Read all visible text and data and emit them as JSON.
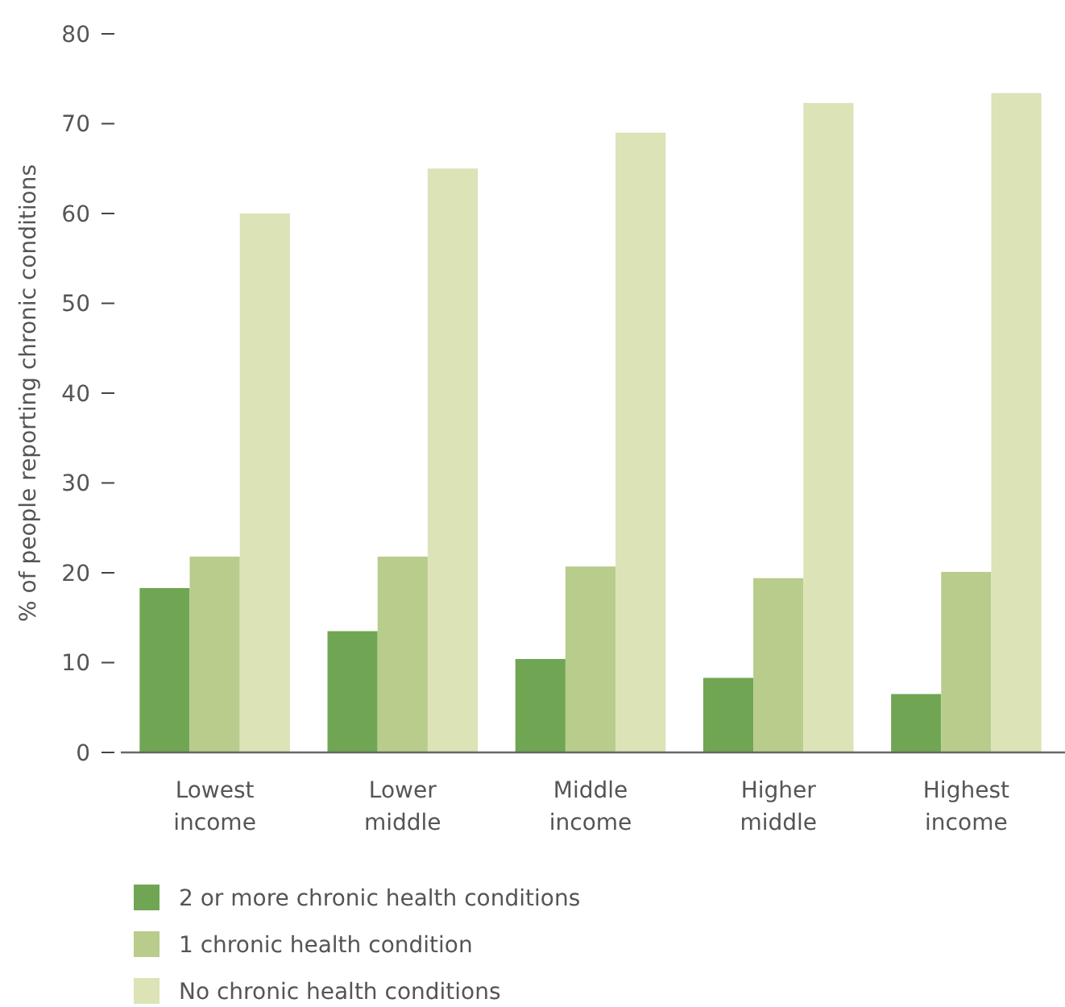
{
  "chart_data": {
    "type": "bar",
    "ylabel": "% of people reporting chronic conditions",
    "categories": [
      "Lowest\nincome",
      "Lower\nmiddle",
      "Middle\nincome",
      "Higher\nmiddle",
      "Highest\nincome"
    ],
    "series": [
      {
        "name": "2 or more chronic health conditions",
        "color": "#70a653",
        "values": [
          18.3,
          13.5,
          10.4,
          8.3,
          6.5
        ]
      },
      {
        "name": "1 chronic health condition",
        "color": "#b8cc8c",
        "values": [
          21.8,
          21.8,
          20.7,
          19.4,
          20.1
        ]
      },
      {
        "name": "No chronic health conditions",
        "color": "#dbe3b7",
        "values": [
          60.0,
          65.0,
          69.0,
          72.3,
          73.4
        ]
      }
    ],
    "ylim": [
      0,
      80
    ],
    "yticks": [
      0,
      10,
      20,
      30,
      40,
      50,
      60,
      70,
      80
    ],
    "grid": false,
    "legend": "bottom left"
  }
}
